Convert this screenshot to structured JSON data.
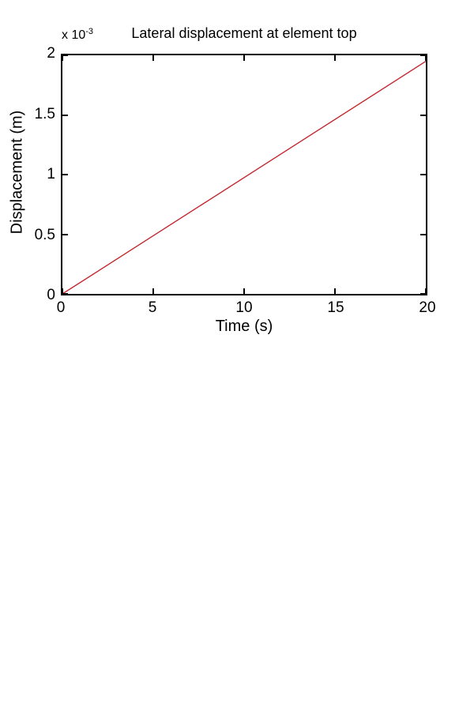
{
  "figure": {
    "background": "#ffffff",
    "axis_color": "#000000",
    "text_color": "#000000"
  },
  "chart_data": {
    "type": "line",
    "title": "Lateral displacement at element top",
    "xlabel": "Time (s)",
    "ylabel": "Displacement (m)",
    "xlim": [
      0,
      20
    ],
    "ylim": [
      0,
      0.002
    ],
    "x_ticks": [
      0,
      5,
      10,
      15,
      20
    ],
    "x_tick_labels": [
      "0",
      "5",
      "10",
      "15",
      "20"
    ],
    "y_ticks": [
      0,
      0.0005,
      0.001,
      0.0015,
      0.002
    ],
    "y_tick_labels": [
      "0",
      "0.5",
      "1",
      "1.5",
      "2"
    ],
    "y_scale_exponent_base": "x 10",
    "y_scale_exponent_power": "-3",
    "grid": false,
    "box": true,
    "legend": "none",
    "series": [
      {
        "name": "lateral-displacement",
        "color": "#c1272d",
        "x": [
          0,
          20
        ],
        "y": [
          0,
          0.00195
        ]
      }
    ]
  }
}
